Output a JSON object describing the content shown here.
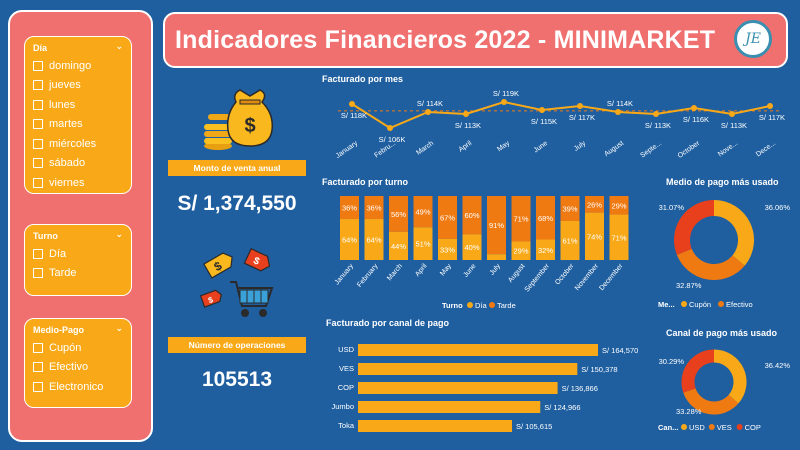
{
  "header": {
    "title": "Indicadores Financieros 2022 - MINIMARKET",
    "logo_text": "JE"
  },
  "slicers": {
    "dia": {
      "title": "Día",
      "items": [
        "domingo",
        "jueves",
        "lunes",
        "martes",
        "miércoles",
        "sábado",
        "viernes"
      ]
    },
    "turno": {
      "title": "Turno",
      "items": [
        "Día",
        "Tarde"
      ]
    },
    "medio": {
      "title": "Medio-Pago",
      "items": [
        "Cupón",
        "Efectivo",
        "Electronico"
      ]
    }
  },
  "kpis": {
    "monto_label": "Monto de venta anual",
    "monto_value": "S/ 1,374,550",
    "ops_label": "Número de operaciones",
    "ops_value": "105513"
  },
  "colors": {
    "background": "#1f5fa0",
    "panel": "#f07070",
    "yellow": "#f9a918",
    "orange": "#f07a12",
    "red": "#e8401c"
  },
  "chart_data": [
    {
      "type": "line",
      "title": "Facturado por mes",
      "categories": [
        "January",
        "Febru...",
        "March",
        "April",
        "May",
        "June",
        "July",
        "August",
        "Septe...",
        "October",
        "Nove...",
        "Dece..."
      ],
      "values": [
        118,
        106,
        114,
        113,
        119,
        115,
        117,
        114,
        113,
        116,
        113,
        117
      ],
      "labels": [
        "S/ 118K",
        "S/ 106K",
        "S/ 114K",
        "S/ 113K",
        "S/ 119K",
        "S/ 115K",
        "S/ 117K",
        "S/ 114K",
        "S/ 113K",
        "S/ 116K",
        "S/ 113K",
        "S/ 117K"
      ],
      "ylim": [
        104,
        121
      ],
      "average_line": true
    },
    {
      "type": "bar",
      "stacked": true,
      "title": "Facturado por turno",
      "categories": [
        "January",
        "February",
        "March",
        "April",
        "May",
        "June",
        "July",
        "August",
        "September",
        "October",
        "November",
        "December"
      ],
      "series": [
        {
          "name": "Día",
          "values": [
            64,
            64,
            44,
            51,
            33,
            40,
            9,
            29,
            32,
            61,
            74,
            71
          ],
          "labels": [
            "64%",
            "64%",
            "44%",
            "51%",
            "33%",
            "40%",
            "",
            "29%",
            "32%",
            "61%",
            "74%",
            "71%"
          ]
        },
        {
          "name": "Tarde",
          "values": [
            36,
            36,
            56,
            49,
            67,
            60,
            91,
            71,
            68,
            39,
            26,
            29
          ],
          "labels": [
            "36%",
            "36%",
            "56%",
            "49%",
            "67%",
            "60%",
            "91%",
            "71%",
            "68%",
            "39%",
            "26%",
            "29%"
          ]
        }
      ],
      "legend_title": "Turno"
    },
    {
      "type": "bar",
      "orientation": "horizontal",
      "title": "Facturado por canal de pago",
      "categories": [
        "USD",
        "VES",
        "COP",
        "Jumbo",
        "Toka"
      ],
      "values": [
        164570,
        150378,
        136866,
        124966,
        105615
      ],
      "labels": [
        "S/ 164,570",
        "S/ 150,378",
        "S/ 136,866",
        "S/ 124,966",
        "S/ 105,615"
      ]
    },
    {
      "type": "pie",
      "donut": true,
      "title": "Medio de pago más usado",
      "categories": [
        "Cupón",
        "Efectivo",
        "Electronico"
      ],
      "values": [
        36.06,
        32.87,
        31.07
      ],
      "labels": [
        "36.06%",
        "32.87%",
        "31.07%"
      ],
      "legend_title": "Me...",
      "legend_items": [
        "Cupón",
        "Efectivo"
      ]
    },
    {
      "type": "pie",
      "donut": true,
      "title": "Canal de pago más usado",
      "categories": [
        "USD",
        "VES",
        "COP"
      ],
      "values": [
        36.42,
        33.28,
        30.29
      ],
      "labels": [
        "36.42%",
        "33.28%",
        "30.29%"
      ],
      "legend_title": "Can...",
      "legend_items": [
        "USD",
        "VES",
        "COP"
      ]
    }
  ]
}
